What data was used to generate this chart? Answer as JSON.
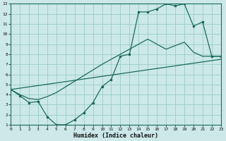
{
  "xlabel": "Humidex (Indice chaleur)",
  "background_color": "#cce8e8",
  "grid_color": "#99cccc",
  "line_color": "#1a6b5a",
  "xlim": [
    0,
    23
  ],
  "ylim": [
    1,
    13
  ],
  "xtick_vals": [
    0,
    1,
    2,
    3,
    4,
    5,
    6,
    7,
    8,
    9,
    10,
    11,
    12,
    13,
    14,
    15,
    16,
    17,
    18,
    19,
    20,
    21,
    22,
    23
  ],
  "ytick_vals": [
    1,
    2,
    3,
    4,
    5,
    6,
    7,
    8,
    9,
    10,
    11,
    12,
    13
  ],
  "line1_x": [
    0,
    23
  ],
  "line1_y": [
    4.5,
    7.5
  ],
  "line2_x": [
    0,
    1,
    2,
    3,
    4,
    5,
    10,
    15,
    17,
    19,
    20,
    21,
    22,
    23
  ],
  "line2_y": [
    4.5,
    4.0,
    3.6,
    3.5,
    3.8,
    4.2,
    7.0,
    9.5,
    8.5,
    9.2,
    8.2,
    7.8,
    7.8,
    7.8
  ],
  "line3_x": [
    0,
    1,
    2,
    3,
    4,
    5,
    6,
    7,
    8,
    9,
    10,
    11,
    12,
    13,
    14,
    15,
    16,
    17,
    18,
    19,
    20,
    21,
    22,
    23
  ],
  "line3_y": [
    4.5,
    3.9,
    3.2,
    3.3,
    1.8,
    1.0,
    1.0,
    1.5,
    2.2,
    3.2,
    4.8,
    5.5,
    7.8,
    8.0,
    12.2,
    12.2,
    12.5,
    13.0,
    12.8,
    13.0,
    10.8,
    11.2,
    7.8,
    7.8
  ]
}
